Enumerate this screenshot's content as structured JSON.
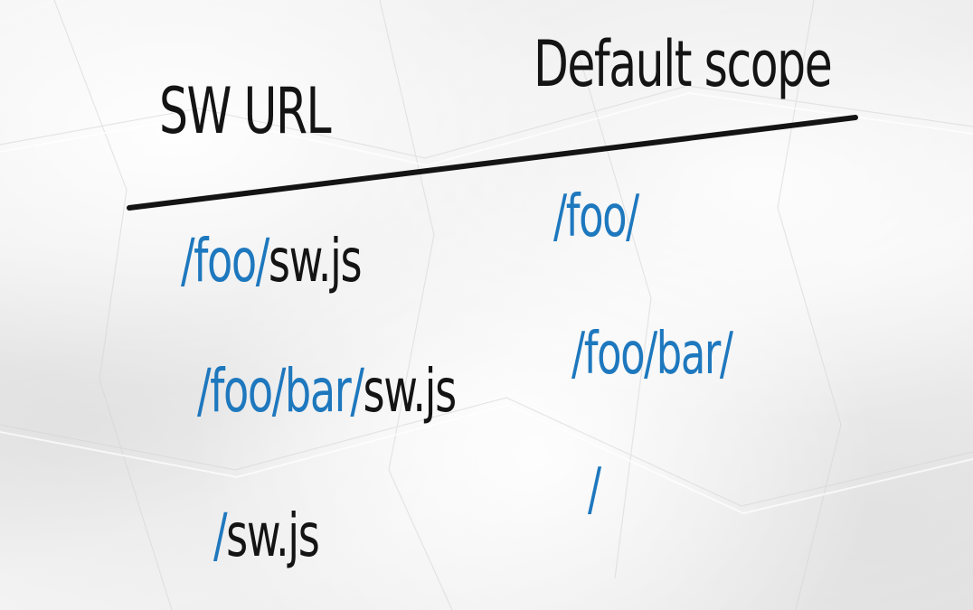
{
  "table": {
    "headers": {
      "sw_url": "SW URL",
      "default_scope": "Default scope"
    },
    "rows": [
      {
        "sw_dir": "/foo/",
        "sw_file": "sw.js",
        "scope": "/foo/"
      },
      {
        "sw_dir": "/foo/bar/",
        "sw_file": "sw.js",
        "scope": "/foo/bar/"
      },
      {
        "sw_dir": "/",
        "sw_file": "sw.js",
        "scope": "/"
      }
    ]
  },
  "colors": {
    "ink_black": "#141414",
    "ink_blue": "#1e78be",
    "paper": "#efefef"
  }
}
